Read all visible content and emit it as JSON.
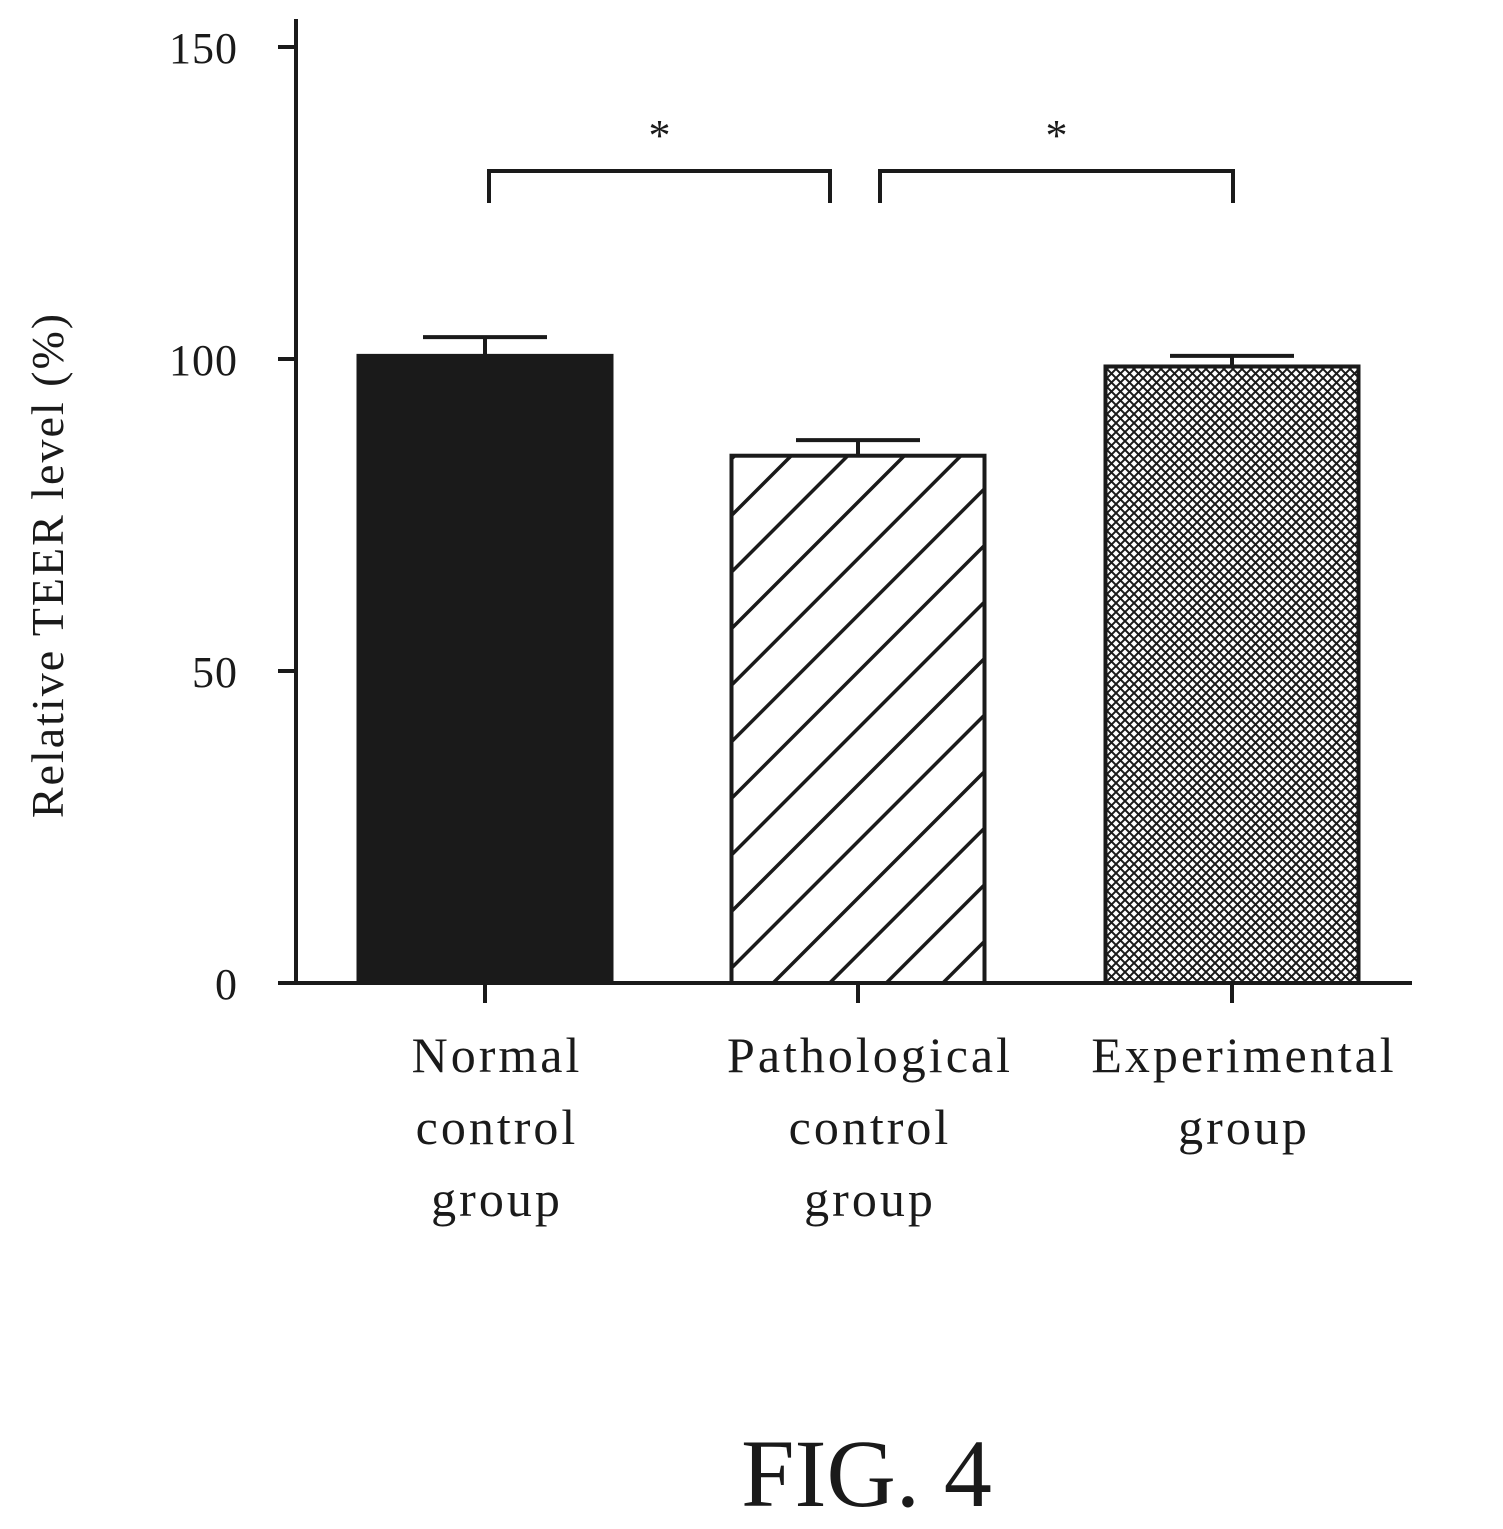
{
  "figure": {
    "caption": "FIG. 4"
  },
  "chart_data": {
    "type": "bar",
    "categories": [
      [
        "Normal",
        "control",
        "group"
      ],
      [
        "Pathological",
        "control",
        "group"
      ],
      [
        "Experimental",
        "group"
      ]
    ],
    "values": [
      100.5,
      84.5,
      98.8
    ],
    "errors": [
      3.0,
      2.5,
      1.7
    ],
    "patterns": [
      "solid",
      "diagonal-hatch",
      "crosshatch"
    ],
    "ylabel": "Relative TEER level (%)",
    "xlabel": "",
    "ylim": [
      0,
      150
    ],
    "yticks": [
      0,
      50,
      100,
      150
    ],
    "significance": [
      {
        "from": 0,
        "to": 1,
        "label": "*"
      },
      {
        "from": 1,
        "to": 2,
        "label": "*"
      }
    ],
    "colors": {
      "ink": "#1a1a1a",
      "background": "#ffffff"
    },
    "grid": false,
    "legend": "none"
  }
}
